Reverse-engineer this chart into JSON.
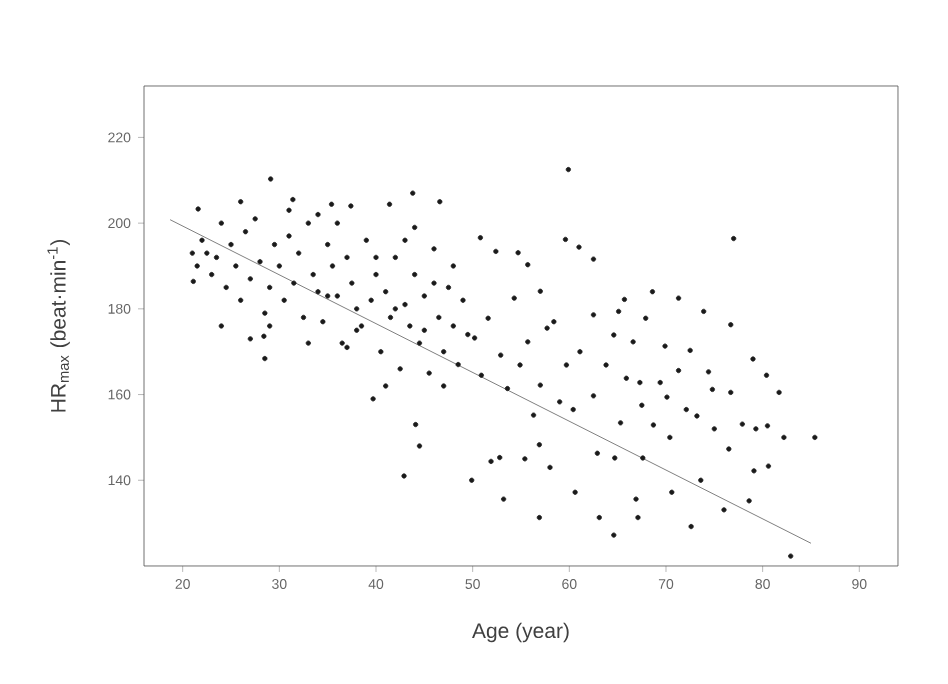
{
  "chart_data": {
    "type": "scatter",
    "xlabel": "Age (year)",
    "ylabel": "HR$_{max}$ (beat·min$^{-1}$)",
    "xlim": [
      16,
      94
    ],
    "ylim": [
      120,
      232
    ],
    "xticks": [
      20,
      30,
      40,
      50,
      60,
      70,
      80,
      90
    ],
    "yticks": [
      140,
      160,
      180,
      200,
      220
    ],
    "grid": false,
    "series": [
      {
        "color": "#1a1a1a",
        "marker": "circle",
        "x": [
          29.1,
          28.5,
          28.4,
          39.7,
          44.1,
          44.5,
          42.9,
          49.9,
          43.8,
          46.6,
          21.1,
          21.6,
          35.4,
          41.4,
          37.4,
          31.4,
          59.9,
          77.0,
          61.0,
          59.6,
          85.4,
          82.9,
          64.6,
          56.9,
          53.2,
          72.6,
          76,
          78.6,
          66.9,
          67.1,
          63.1,
          60.6,
          58,
          55.4,
          51.9,
          52.8,
          56.9,
          62.9,
          64.7,
          67.6,
          70.6,
          73.6,
          80.6,
          79.1,
          82.2,
          80.5,
          79.3,
          76.5,
          75,
          77.9,
          81.7,
          80.4,
          79,
          76.7,
          76.7,
          73.9,
          72.5,
          74.4,
          73.2,
          70.4,
          68.7,
          67.5,
          70.1,
          71.3,
          69.9,
          68.6,
          65.7,
          62.5,
          54.7,
          50.8,
          52.4,
          55.7,
          54.3,
          57.7,
          61.1,
          63.8,
          65.9,
          59,
          56.3,
          53.6,
          50.9,
          52.9,
          55.7,
          58.4,
          62.5,
          64.6,
          66.6,
          67.3,
          62.5,
          60.4,
          65.3,
          69.4,
          72.1,
          74.8,
          71.3,
          67.9,
          65.1,
          57,
          51.6,
          50.2,
          59.7,
          54.9,
          57,
          21,
          21.5,
          22,
          22.5,
          23,
          23.5,
          24,
          24.5,
          25,
          25.5,
          26,
          26.5,
          27,
          27.5,
          28,
          28.5,
          29,
          29.5,
          30,
          30.5,
          31,
          31.5,
          32,
          32.5,
          33,
          33.5,
          34,
          34.5,
          35,
          35.5,
          36,
          36.5,
          37,
          37.5,
          38,
          38.5,
          39,
          39.5,
          40,
          40.5,
          41,
          41.5,
          42,
          42.5,
          43,
          43.5,
          44,
          44.5,
          45,
          45.5,
          46,
          46.5,
          47,
          47.5,
          48,
          48.5,
          49,
          49.5,
          26,
          24,
          27,
          31,
          34,
          36,
          38,
          40,
          41,
          45,
          47,
          48,
          44,
          43,
          37,
          33,
          29,
          35,
          42,
          46
        ],
        "values": [
          210.3,
          168.4,
          173.6,
          159,
          153,
          148,
          141,
          140,
          207,
          205,
          186.4,
          203.3,
          204.4,
          204.4,
          204,
          205.5,
          212.5,
          196.4,
          194.4,
          196.2,
          150,
          122.3,
          127.2,
          131.3,
          135.6,
          129.2,
          133.1,
          135.2,
          135.6,
          131.3,
          131.3,
          137.2,
          143,
          145,
          144.4,
          145.3,
          148.3,
          146.3,
          145.2,
          145.2,
          137.2,
          140,
          143.3,
          142.2,
          150,
          152.7,
          152,
          147.3,
          152,
          153.1,
          160.5,
          164.5,
          168.3,
          160.5,
          176.3,
          179.4,
          170.3,
          165.3,
          155,
          150,
          152.9,
          157.5,
          159.4,
          165.6,
          171.3,
          184,
          182.2,
          191.6,
          193.1,
          196.6,
          193.4,
          190.3,
          182.5,
          175.5,
          170,
          166.9,
          163.8,
          158.3,
          155.2,
          161.4,
          164.5,
          169.2,
          172.3,
          177,
          178.6,
          173.9,
          172.3,
          162.8,
          159.7,
          156.5,
          153.4,
          162.8,
          156.5,
          161.2,
          182.5,
          177.8,
          179.4,
          184.1,
          177.8,
          173.2,
          166.9,
          166.9,
          162.2,
          193,
          190,
          196,
          193,
          188,
          192,
          200,
          185,
          195,
          190,
          182,
          198,
          187,
          201,
          191,
          179,
          185,
          195,
          190,
          182,
          197,
          186,
          193,
          178,
          200,
          188,
          184,
          177,
          195,
          190,
          183,
          172,
          192,
          186,
          180,
          176,
          196,
          182,
          188,
          170,
          184,
          178,
          192,
          166,
          181,
          176,
          188,
          172,
          183,
          165,
          194,
          178,
          170,
          185,
          176,
          167,
          182,
          174,
          205,
          176,
          173,
          203,
          202,
          200,
          175,
          192,
          162,
          175,
          162,
          190,
          199,
          196,
          171,
          172,
          176,
          183,
          180,
          186
        ]
      },
      {
        "type": "line",
        "color": "#808080",
        "marker": "none",
        "x": [
          18.7,
          85
        ],
        "values": [
          200.8,
          125.3
        ]
      }
    ]
  }
}
